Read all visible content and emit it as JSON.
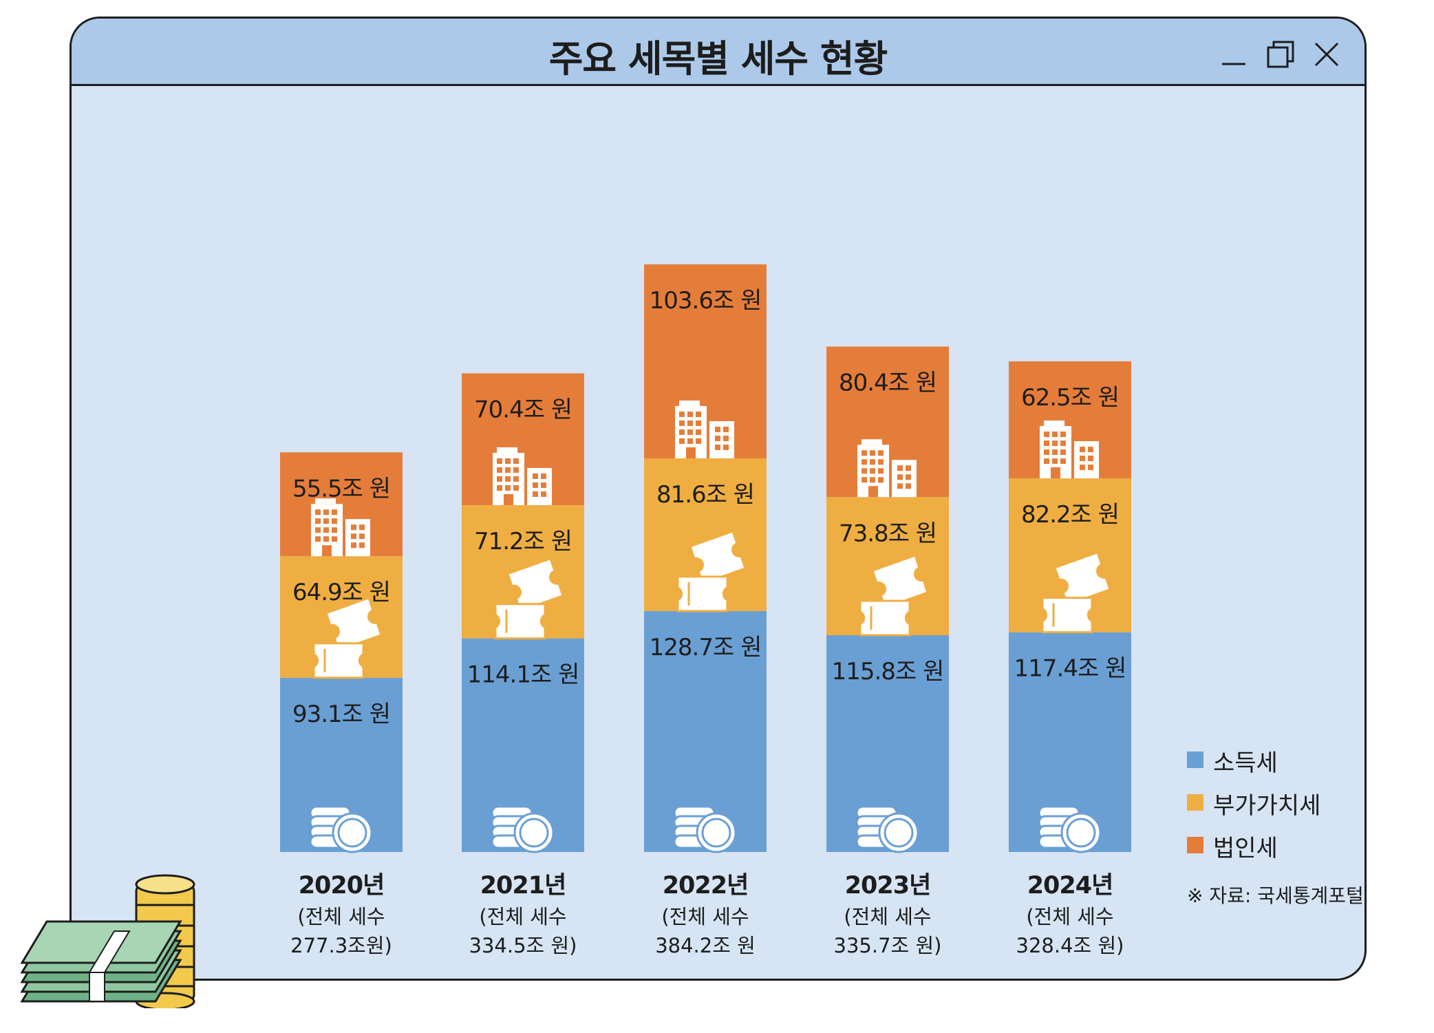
{
  "window": {
    "title": "주요 세목별 세수 현황",
    "controls": [
      "minimize-icon",
      "restore-icon",
      "close-icon"
    ]
  },
  "chart_data": {
    "type": "bar",
    "stacked": true,
    "title": "주요 세목별 세수 현황",
    "categories": [
      "2020년",
      "2021년",
      "2022년",
      "2023년",
      "2024년"
    ],
    "category_notes": [
      [
        "(전체 세수",
        "277.3조원)"
      ],
      [
        "(전체 세수",
        "334.5조 원)"
      ],
      [
        "(전체 세수",
        "384.2조 원"
      ],
      [
        "(전체 세수",
        "335.7조 원)"
      ],
      [
        "(전체 세수",
        "328.4조 원)"
      ]
    ],
    "unit": "조 원",
    "series": [
      {
        "name": "소득세",
        "color": "#6a9fd3",
        "icon": "coins-icon",
        "values": [
          93.1,
          114.1,
          128.7,
          115.8,
          117.4
        ],
        "labels": [
          "93.1조 원",
          "114.1조 원",
          "128.7조 원",
          "115.8조 원",
          "117.4조 원"
        ]
      },
      {
        "name": "부가가치세",
        "color": "#efae42",
        "icon": "ticket-icon",
        "values": [
          64.9,
          71.2,
          81.6,
          73.8,
          82.2
        ],
        "labels": [
          "64.9조 원",
          "71.2조 원",
          "81.6조 원",
          "73.8조 원",
          "82.2조 원"
        ]
      },
      {
        "name": "법인세",
        "color": "#e57d3a",
        "icon": "building-icon",
        "values": [
          55.5,
          70.4,
          103.6,
          80.4,
          62.5
        ],
        "labels": [
          "55.5조 원",
          "70.4조 원",
          "103.6조 원",
          "80.4조 원",
          "62.5조 원"
        ]
      }
    ],
    "legend_position": "bottom-right",
    "grid": false
  },
  "source": "※ 자료: 국세통계포털",
  "decoration": {
    "icon": "money-stack-icon"
  }
}
